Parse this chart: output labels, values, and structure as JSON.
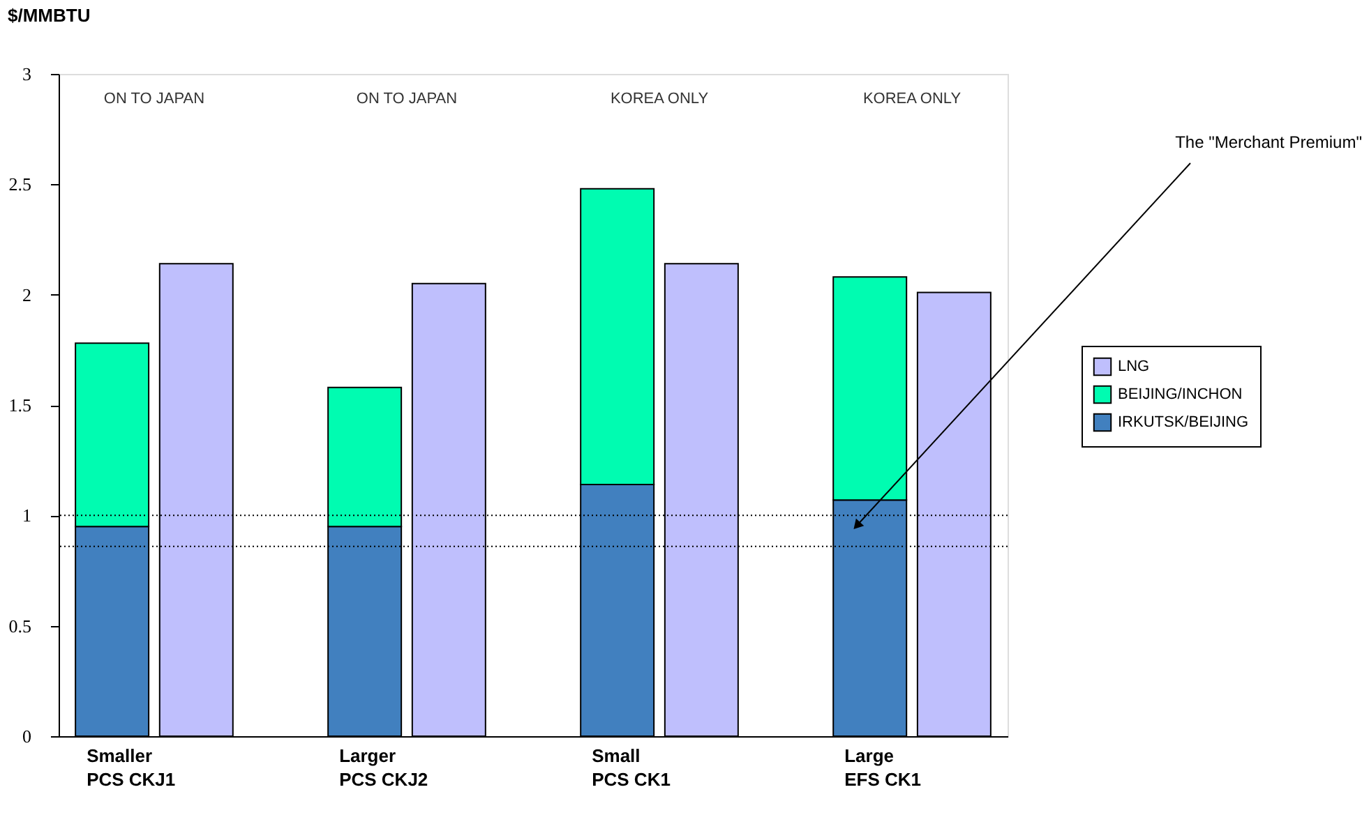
{
  "chart_data": {
    "type": "bar",
    "ylabel": "$/MMBTU",
    "categories": [
      "Smaller PCS CKJ1",
      null,
      null,
      "Larger PCS CKJ2",
      null,
      null,
      "Small PCS CK1",
      null,
      null,
      "Large EFS CK1",
      null
    ],
    "stacked": true,
    "series": [
      {
        "name": "IRKUTSK/BEIJING",
        "color": "#4180bf",
        "values": [
          0.95,
          null,
          null,
          0.95,
          null,
          null,
          1.14,
          null,
          null,
          1.07,
          null
        ]
      },
      {
        "name": "BEIJING/INCHON",
        "color": "#00fcb1",
        "values": [
          0.83,
          null,
          null,
          0.63,
          null,
          null,
          1.34,
          null,
          null,
          1.01,
          null
        ]
      },
      {
        "name": "LNG",
        "color": "#bfbffd",
        "values": [
          null,
          2.14,
          null,
          null,
          2.05,
          null,
          null,
          2.14,
          null,
          null,
          2.01
        ]
      }
    ],
    "ylim": [
      0,
      3
    ],
    "yticks": [
      0,
      0.5,
      1,
      1.5,
      2,
      2.5,
      3
    ],
    "ref_lines": [
      {
        "axis": "y",
        "value": 0.86,
        "line_style": "dotted"
      },
      {
        "axis": "y",
        "value": 1.0,
        "line_style": "dotted"
      }
    ],
    "annotations": [
      "ON TO JAPAN",
      "ON TO JAPAN",
      "KOREA ONLY",
      "KOREA ONLY",
      "The \"Merchant Premium\""
    ],
    "legend": "right",
    "grid": false
  }
}
